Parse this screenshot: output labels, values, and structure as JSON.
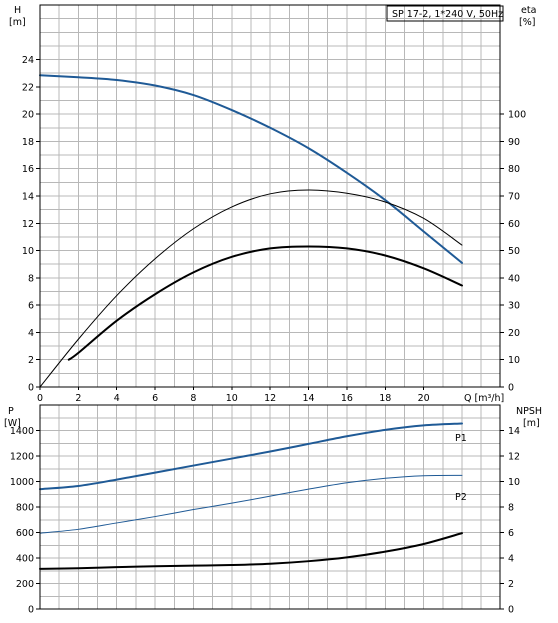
{
  "chart_data": [
    {
      "type": "line",
      "title": "SP 17-2, 1*240 V, 50Hz",
      "xlabel": "Q [m³/h]",
      "ylabel": "H [m]",
      "ylabel_right": "eta [%]",
      "xlim": [
        0,
        22
      ],
      "xticks": [
        0,
        2,
        4,
        6,
        8,
        10,
        12,
        14,
        16,
        18,
        20
      ],
      "ylim": [
        0,
        28
      ],
      "yticks": [
        0,
        2,
        4,
        6,
        8,
        10,
        12,
        14,
        16,
        18,
        20,
        22,
        24
      ],
      "ylim_right": [
        0,
        140
      ],
      "yticks_right": [
        0,
        10,
        20,
        30,
        40,
        50,
        60,
        70,
        80,
        90,
        100
      ],
      "grid": true,
      "series": [
        {
          "axis": "left",
          "color": "#1f5a96",
          "width": 2,
          "x": [
            0,
            2,
            4,
            6,
            8,
            10,
            12,
            14,
            16,
            18,
            20,
            22
          ],
          "y": [
            22.85,
            22.7,
            22.5,
            22.1,
            21.4,
            20.3,
            19.0,
            17.5,
            15.7,
            13.7,
            11.4,
            9.1
          ]
        },
        {
          "axis": "right",
          "color": "#000000",
          "width": 1,
          "x": [
            0,
            2,
            4,
            6,
            8,
            10,
            12,
            14,
            16,
            18,
            20,
            22
          ],
          "y": [
            0,
            17.5,
            33.5,
            47,
            58,
            66,
            70.8,
            72.2,
            71,
            67.8,
            61.8,
            52
          ]
        },
        {
          "axis": "right",
          "color": "#000000",
          "width": 2,
          "x": [
            1.5,
            2,
            4,
            6,
            8,
            10,
            12,
            14,
            16,
            18,
            20,
            22
          ],
          "y": [
            10,
            12.5,
            24.3,
            34,
            42,
            47.7,
            50.8,
            51.5,
            50.8,
            48.2,
            43.5,
            37.2
          ]
        }
      ]
    },
    {
      "type": "line",
      "xlim": [
        0,
        22
      ],
      "ylabel": "P [W]",
      "ylabel_right": "NPSH [m]",
      "ylim": [
        0,
        1600
      ],
      "yticks": [
        0,
        200,
        400,
        600,
        800,
        1000,
        1200,
        1400
      ],
      "ylim_right": [
        0,
        16
      ],
      "yticks_right": [
        0,
        2,
        4,
        6,
        8,
        10,
        12,
        14
      ],
      "grid": true,
      "series": [
        {
          "name": "P1",
          "axis": "left",
          "color": "#1f5a96",
          "width": 2,
          "x": [
            0,
            2,
            4,
            6,
            8,
            10,
            12,
            14,
            16,
            18,
            20,
            22
          ],
          "y": [
            940,
            965,
            1015,
            1070,
            1125,
            1180,
            1235,
            1295,
            1355,
            1405,
            1440,
            1455
          ]
        },
        {
          "name": "P2",
          "axis": "left",
          "color": "#1f5a96",
          "width": 1,
          "x": [
            0,
            2,
            4,
            6,
            8,
            10,
            12,
            14,
            16,
            18,
            20,
            22
          ],
          "y": [
            595,
            625,
            675,
            725,
            780,
            830,
            885,
            940,
            990,
            1025,
            1045,
            1048
          ]
        },
        {
          "axis": "right",
          "color": "#000000",
          "width": 2,
          "x": [
            0,
            2,
            4,
            6,
            8,
            10,
            12,
            14,
            16,
            18,
            20,
            22
          ],
          "y": [
            3.15,
            3.2,
            3.28,
            3.35,
            3.4,
            3.45,
            3.55,
            3.75,
            4.05,
            4.5,
            5.1,
            5.95
          ]
        }
      ]
    }
  ]
}
